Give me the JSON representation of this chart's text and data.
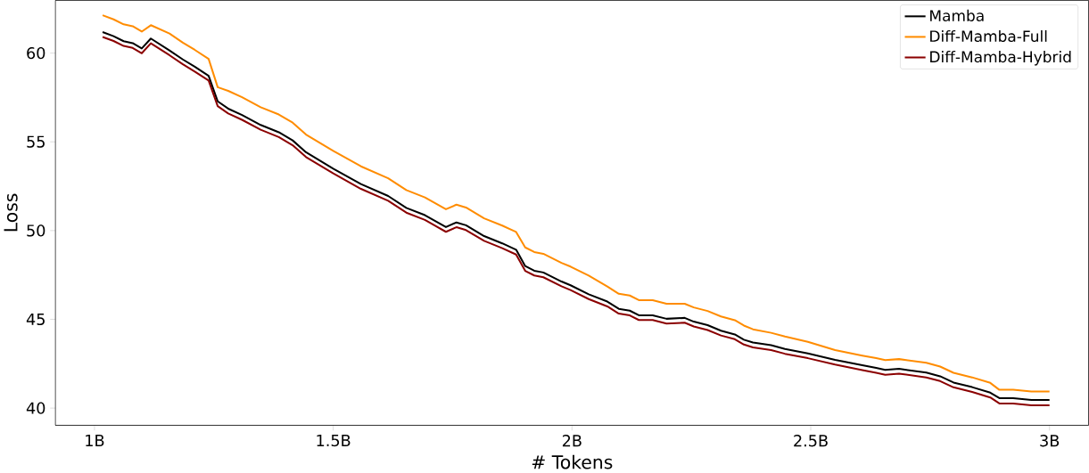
{
  "chart_data": {
    "type": "line",
    "xlabel": "# Tokens",
    "ylabel": "Loss",
    "x": [
      1.017,
      1.04,
      1.061,
      1.08,
      1.099,
      1.118,
      1.157,
      1.185,
      1.21,
      1.239,
      1.258,
      1.28,
      1.309,
      1.348,
      1.386,
      1.415,
      1.443,
      1.5,
      1.558,
      1.615,
      1.653,
      1.692,
      1.736,
      1.758,
      1.778,
      1.816,
      1.854,
      1.883,
      1.902,
      1.921,
      1.94,
      1.978,
      1.997,
      2.035,
      2.074,
      2.098,
      2.121,
      2.14,
      2.169,
      2.198,
      2.236,
      2.255,
      2.284,
      2.312,
      2.341,
      2.36,
      2.379,
      2.417,
      2.446,
      2.494,
      2.551,
      2.608,
      2.637,
      2.656,
      2.685,
      2.742,
      2.771,
      2.799,
      2.838,
      2.876,
      2.895,
      2.924,
      2.962,
      3.0
    ],
    "series": [
      {
        "name": "Mamba",
        "color": "#000000",
        "values": [
          61.18,
          60.95,
          60.67,
          60.56,
          60.26,
          60.82,
          60.15,
          59.64,
          59.23,
          58.72,
          57.28,
          56.87,
          56.51,
          55.95,
          55.54,
          55.08,
          54.41,
          53.49,
          52.62,
          51.95,
          51.28,
          50.87,
          50.2,
          50.46,
          50.3,
          49.69,
          49.28,
          48.92,
          48.0,
          47.74,
          47.64,
          47.13,
          46.92,
          46.41,
          46.0,
          45.59,
          45.49,
          45.23,
          45.23,
          45.03,
          45.08,
          44.87,
          44.67,
          44.36,
          44.15,
          43.85,
          43.69,
          43.54,
          43.33,
          43.08,
          42.72,
          42.41,
          42.26,
          42.15,
          42.21,
          42.0,
          41.79,
          41.44,
          41.18,
          40.87,
          40.56,
          40.56,
          40.46,
          40.46
        ]
      },
      {
        "name": "Diff-Mamba-Full",
        "color": "#ff8c00",
        "values": [
          62.13,
          61.9,
          61.62,
          61.51,
          61.21,
          61.57,
          61.1,
          60.59,
          60.18,
          59.67,
          58.08,
          57.87,
          57.51,
          56.95,
          56.54,
          56.08,
          55.41,
          54.49,
          53.62,
          52.95,
          52.28,
          51.87,
          51.2,
          51.46,
          51.3,
          50.69,
          50.28,
          49.92,
          49.05,
          48.79,
          48.69,
          48.18,
          47.97,
          47.46,
          46.85,
          46.44,
          46.34,
          46.08,
          46.08,
          45.88,
          45.88,
          45.67,
          45.47,
          45.16,
          44.95,
          44.65,
          44.44,
          44.24,
          44.03,
          43.73,
          43.27,
          42.96,
          42.81,
          42.7,
          42.76,
          42.55,
          42.34,
          41.99,
          41.73,
          41.42,
          41.03,
          41.03,
          40.93,
          40.93
        ]
      },
      {
        "name": "Diff-Mamba-Hybrid",
        "color": "#8b0000",
        "values": [
          60.91,
          60.68,
          60.4,
          60.29,
          59.99,
          60.55,
          59.88,
          59.37,
          58.96,
          58.45,
          57.01,
          56.6,
          56.24,
          55.68,
          55.27,
          54.81,
          54.14,
          53.22,
          52.35,
          51.68,
          51.01,
          50.6,
          49.93,
          50.19,
          50.03,
          49.42,
          49.01,
          48.65,
          47.73,
          47.47,
          47.37,
          46.86,
          46.65,
          46.14,
          45.73,
          45.32,
          45.22,
          44.96,
          44.96,
          44.76,
          44.81,
          44.6,
          44.4,
          44.09,
          43.88,
          43.58,
          43.42,
          43.27,
          43.06,
          42.81,
          42.45,
          42.14,
          41.99,
          41.88,
          41.94,
          41.73,
          41.52,
          41.17,
          40.91,
          40.6,
          40.26,
          40.26,
          40.16,
          40.16
        ]
      }
    ],
    "xlim": [
      0.918,
      3.082
    ],
    "ylim": [
      39.03,
      62.97
    ],
    "xticks": [
      {
        "value": 1,
        "label": "1B"
      },
      {
        "value": 1.5,
        "label": "1.5B"
      },
      {
        "value": 2,
        "label": "2B"
      },
      {
        "value": 2.5,
        "label": "2.5B"
      },
      {
        "value": 3,
        "label": "3B"
      }
    ],
    "yticks": [
      40,
      45,
      50,
      55,
      60
    ],
    "grid": false,
    "legend": "top right",
    "marker": "none",
    "line_style": "solid"
  }
}
